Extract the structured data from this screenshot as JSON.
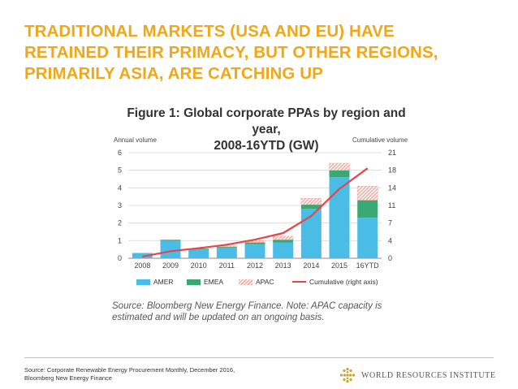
{
  "slide": {
    "title_lines": [
      "TRADITIONAL MARKETS (USA AND EU) HAVE",
      "RETAINED THEIR PRIMACY, BUT OTHER REGIONS,",
      "PRIMARILY ASIA, ARE CATCHING UP"
    ],
    "source_lines": [
      "Source: Corporate Renewable Energy Procurement Monthly, December 2016,",
      "Bloomberg New Energy Finance"
    ],
    "org_name": "WORLD RESOURCES INSTITUTE",
    "org_logo_icon": "wri-logo-icon"
  },
  "figure": {
    "title_lines": [
      "Figure 1: Global corporate PPAs by region and year,",
      "2008-16YTD (GW)"
    ],
    "note_lines": [
      "Source: Bloomberg New Energy Finance. Note: APAC capacity is",
      "estimated and will be updated on an ongoing basis."
    ]
  },
  "chart_data": {
    "type": "bar",
    "stacked": true,
    "categories": [
      "2008",
      "2009",
      "2010",
      "2011",
      "2012",
      "2013",
      "2014",
      "2015",
      "16YTD"
    ],
    "series": [
      {
        "name": "AMER",
        "values": [
          0.3,
          1.0,
          0.5,
          0.6,
          0.8,
          0.9,
          2.8,
          4.6,
          2.3
        ],
        "color": "#49bde6"
      },
      {
        "name": "EMEA",
        "values": [
          0.0,
          0.05,
          0.05,
          0.05,
          0.1,
          0.15,
          0.25,
          0.4,
          1.0
        ],
        "color": "#3aa873"
      },
      {
        "name": "APAC",
        "values": [
          0.0,
          0.0,
          0.0,
          0.05,
          0.1,
          0.2,
          0.35,
          0.4,
          0.8
        ],
        "color": "#f4a9a0"
      }
    ],
    "line_series": {
      "name": "Cumulative (right axis)",
      "values": [
        0.3,
        1.4,
        2.0,
        2.7,
        3.7,
        5.0,
        8.4,
        13.8,
        17.9
      ],
      "color": "#e8444a"
    },
    "ylabel": "Annual volume",
    "y2label": "Cumulative volume",
    "ylim": [
      0,
      6
    ],
    "y2lim": [
      0,
      21
    ],
    "y_ticks": [
      "0",
      "1",
      "2",
      "3",
      "4",
      "5",
      "6"
    ],
    "y2_ticks": [
      "0",
      "4",
      "7",
      "11",
      "14",
      "18",
      "21"
    ],
    "grid": true,
    "legend_position": "bottom"
  }
}
